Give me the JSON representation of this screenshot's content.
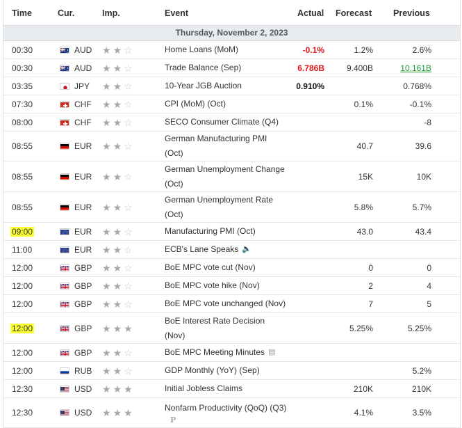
{
  "columns": {
    "time": "Time",
    "cur": "Cur.",
    "imp": "Imp.",
    "event": "Event",
    "actual": "Actual",
    "forecast": "Forecast",
    "previous": "Previous"
  },
  "date_label": "Thursday, November 2, 2023",
  "colors": {
    "star_on": "#a8a8a8",
    "star_off": "#c9c9c9",
    "negative": "#e1161b",
    "positive": "#1e9a2f",
    "highlight": "#fbff2f"
  },
  "rows": [
    {
      "time": "00:30",
      "flag": "AU",
      "cur": "AUD",
      "imp": 2,
      "event": "Home Loans (MoM)",
      "actual": "-0.1%",
      "forecast": "1.2%",
      "previous": "2.6%"
    },
    {
      "time": "00:30",
      "flag": "AU",
      "cur": "AUD",
      "imp": 2,
      "event": "Trade Balance (Sep)",
      "actual": "6.786B",
      "forecast": "9.400B",
      "previous": "10.161B"
    },
    {
      "time": "03:35",
      "flag": "JP",
      "cur": "JPY",
      "imp": 2,
      "event": "10-Year JGB Auction",
      "actual": "0.910%",
      "forecast": "",
      "previous": "0.768%"
    },
    {
      "time": "07:30",
      "flag": "CH",
      "cur": "CHF",
      "imp": 2,
      "event": "CPI (MoM) (Oct)",
      "actual": "",
      "forecast": "0.1%",
      "previous": "-0.1%"
    },
    {
      "time": "08:00",
      "flag": "CH",
      "cur": "CHF",
      "imp": 2,
      "event": "SECO Consumer Climate (Q4)",
      "actual": "",
      "forecast": "",
      "previous": "-8"
    },
    {
      "time": "08:55",
      "flag": "DE",
      "cur": "EUR",
      "imp": 2,
      "event_l1": "German Manufacturing PMI",
      "event_l2": "(Oct)",
      "actual": "",
      "forecast": "40.7",
      "previous": "39.6"
    },
    {
      "time": "08:55",
      "flag": "DE",
      "cur": "EUR",
      "imp": 2,
      "event_l1": "German Unemployment Change",
      "event_l2": "(Oct)",
      "actual": "",
      "forecast": "15K",
      "previous": "10K"
    },
    {
      "time": "08:55",
      "flag": "DE",
      "cur": "EUR",
      "imp": 2,
      "event_l1": "German Unemployment Rate",
      "event_l2": "(Oct)",
      "actual": "",
      "forecast": "5.8%",
      "previous": "5.7%"
    },
    {
      "time": "09:00",
      "flag": "EU",
      "cur": "EUR",
      "imp": 2,
      "event": "Manufacturing PMI (Oct)",
      "actual": "",
      "forecast": "43.0",
      "previous": "43.4",
      "highlight": true
    },
    {
      "time": "11:00",
      "flag": "EU",
      "cur": "EUR",
      "imp": 2,
      "event": "ECB's Lane Speaks",
      "icon": "speaker-icon",
      "actual": "",
      "forecast": "",
      "previous": ""
    },
    {
      "time": "12:00",
      "flag": "GB",
      "cur": "GBP",
      "imp": 2,
      "event": "BoE MPC vote cut (Nov)",
      "actual": "",
      "forecast": "0",
      "previous": "0"
    },
    {
      "time": "12:00",
      "flag": "GB",
      "cur": "GBP",
      "imp": 2,
      "event": "BoE MPC vote hike (Nov)",
      "actual": "",
      "forecast": "2",
      "previous": "4"
    },
    {
      "time": "12:00",
      "flag": "GB",
      "cur": "GBP",
      "imp": 2,
      "event": "BoE MPC vote unchanged (Nov)",
      "actual": "",
      "forecast": "7",
      "previous": "5"
    },
    {
      "time": "12:00",
      "flag": "GB",
      "cur": "GBP",
      "imp": 3,
      "event_l1": "BoE Interest Rate Decision",
      "event_l2": "(Nov)",
      "actual": "",
      "forecast": "5.25%",
      "previous": "5.25%",
      "highlight": true
    },
    {
      "time": "12:00",
      "flag": "GB",
      "cur": "GBP",
      "imp": 2,
      "event": "BoE MPC Meeting Minutes",
      "icon": "document-icon",
      "actual": "",
      "forecast": "",
      "previous": ""
    },
    {
      "time": "12:00",
      "flag": "RU",
      "cur": "RUB",
      "imp": 2,
      "event": "GDP Monthly (YoY) (Sep)",
      "actual": "",
      "forecast": "",
      "previous": "5.2%"
    },
    {
      "time": "12:30",
      "flag": "US",
      "cur": "USD",
      "imp": 3,
      "event": "Initial Jobless Claims",
      "actual": "",
      "forecast": "210K",
      "previous": "210K"
    },
    {
      "time": "12:30",
      "flag": "US",
      "cur": "USD",
      "imp": 3,
      "event": "Nonfarm Productivity (QoQ) (Q3)",
      "icon": "preliminary-icon",
      "actual": "",
      "forecast": "4.1%",
      "previous": "3.5%"
    }
  ],
  "preliminary_mark": "P"
}
